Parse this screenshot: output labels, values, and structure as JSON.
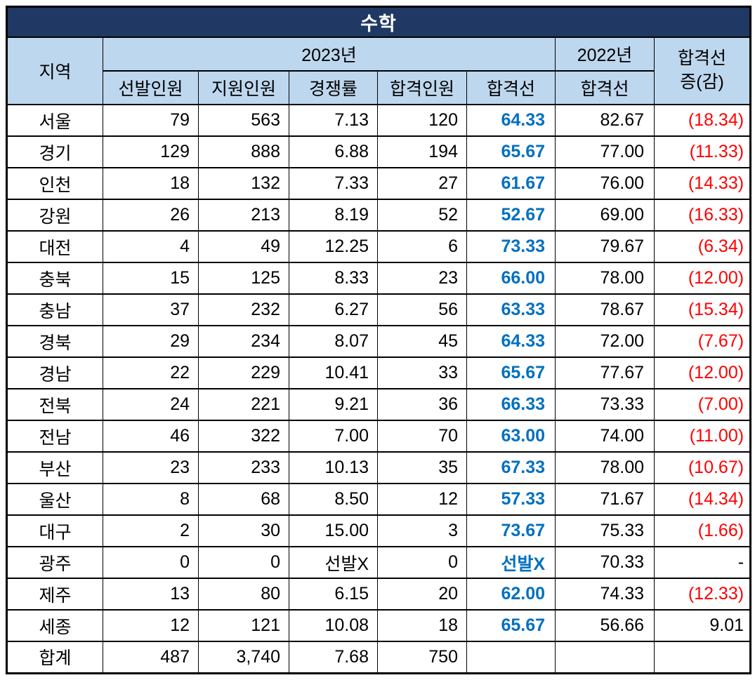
{
  "title": "수학",
  "colors": {
    "title_background": "#203864",
    "title_text": "#FFFFFF",
    "header_background": "#BDD7EE",
    "cutoff_2023_text": "#0070C0",
    "decrease_text": "#FF0000",
    "body_text": "#000000",
    "border": "#000000"
  },
  "header": {
    "region": "지역",
    "group_2023": "2023년",
    "group_2022": "2022년",
    "sub_2023": [
      "선발인원",
      "지원인원",
      "경쟁률",
      "합격인원",
      "합격선"
    ],
    "sub_2022": "합격선",
    "diff_line1": "합격선",
    "diff_line2": "증(감)"
  },
  "rows": [
    {
      "region": "서울",
      "selected_2023": "79",
      "applied_2023": "563",
      "ratio_2023": "7.13",
      "passed_2023": "120",
      "cutoff_2023": "64.33",
      "cutoff_2022": "82.67",
      "diff": "(18.34)",
      "diff_negative": true
    },
    {
      "region": "경기",
      "selected_2023": "129",
      "applied_2023": "888",
      "ratio_2023": "6.88",
      "passed_2023": "194",
      "cutoff_2023": "65.67",
      "cutoff_2022": "77.00",
      "diff": "(11.33)",
      "diff_negative": true
    },
    {
      "region": "인천",
      "selected_2023": "18",
      "applied_2023": "132",
      "ratio_2023": "7.33",
      "passed_2023": "27",
      "cutoff_2023": "61.67",
      "cutoff_2022": "76.00",
      "diff": "(14.33)",
      "diff_negative": true
    },
    {
      "region": "강원",
      "selected_2023": "26",
      "applied_2023": "213",
      "ratio_2023": "8.19",
      "passed_2023": "52",
      "cutoff_2023": "52.67",
      "cutoff_2022": "69.00",
      "diff": "(16.33)",
      "diff_negative": true
    },
    {
      "region": "대전",
      "selected_2023": "4",
      "applied_2023": "49",
      "ratio_2023": "12.25",
      "passed_2023": "6",
      "cutoff_2023": "73.33",
      "cutoff_2022": "79.67",
      "diff": "(6.34)",
      "diff_negative": true
    },
    {
      "region": "충북",
      "selected_2023": "15",
      "applied_2023": "125",
      "ratio_2023": "8.33",
      "passed_2023": "23",
      "cutoff_2023": "66.00",
      "cutoff_2022": "78.00",
      "diff": "(12.00)",
      "diff_negative": true
    },
    {
      "region": "충남",
      "selected_2023": "37",
      "applied_2023": "232",
      "ratio_2023": "6.27",
      "passed_2023": "56",
      "cutoff_2023": "63.33",
      "cutoff_2022": "78.67",
      "diff": "(15.34)",
      "diff_negative": true
    },
    {
      "region": "경북",
      "selected_2023": "29",
      "applied_2023": "234",
      "ratio_2023": "8.07",
      "passed_2023": "45",
      "cutoff_2023": "64.33",
      "cutoff_2022": "72.00",
      "diff": "(7.67)",
      "diff_negative": true
    },
    {
      "region": "경남",
      "selected_2023": "22",
      "applied_2023": "229",
      "ratio_2023": "10.41",
      "passed_2023": "33",
      "cutoff_2023": "65.67",
      "cutoff_2022": "77.67",
      "diff": "(12.00)",
      "diff_negative": true
    },
    {
      "region": "전북",
      "selected_2023": "24",
      "applied_2023": "221",
      "ratio_2023": "9.21",
      "passed_2023": "36",
      "cutoff_2023": "66.33",
      "cutoff_2022": "73.33",
      "diff": "(7.00)",
      "diff_negative": true
    },
    {
      "region": "전남",
      "selected_2023": "46",
      "applied_2023": "322",
      "ratio_2023": "7.00",
      "passed_2023": "70",
      "cutoff_2023": "63.00",
      "cutoff_2022": "74.00",
      "diff": "(11.00)",
      "diff_negative": true
    },
    {
      "region": "부산",
      "selected_2023": "23",
      "applied_2023": "233",
      "ratio_2023": "10.13",
      "passed_2023": "35",
      "cutoff_2023": "67.33",
      "cutoff_2022": "78.00",
      "diff": "(10.67)",
      "diff_negative": true
    },
    {
      "region": "울산",
      "selected_2023": "8",
      "applied_2023": "68",
      "ratio_2023": "8.50",
      "passed_2023": "12",
      "cutoff_2023": "57.33",
      "cutoff_2022": "71.67",
      "diff": "(14.34)",
      "diff_negative": true
    },
    {
      "region": "대구",
      "selected_2023": "2",
      "applied_2023": "30",
      "ratio_2023": "15.00",
      "passed_2023": "3",
      "cutoff_2023": "73.67",
      "cutoff_2022": "75.33",
      "diff": "(1.66)",
      "diff_negative": true
    },
    {
      "region": "광주",
      "selected_2023": "0",
      "applied_2023": "0",
      "ratio_2023": "선발X",
      "passed_2023": "0",
      "cutoff_2023": "선발X",
      "cutoff_2022": "70.33",
      "diff": "-",
      "diff_negative": false
    },
    {
      "region": "제주",
      "selected_2023": "13",
      "applied_2023": "80",
      "ratio_2023": "6.15",
      "passed_2023": "20",
      "cutoff_2023": "62.00",
      "cutoff_2022": "74.33",
      "diff": "(12.33)",
      "diff_negative": true
    },
    {
      "region": "세종",
      "selected_2023": "12",
      "applied_2023": "121",
      "ratio_2023": "10.08",
      "passed_2023": "18",
      "cutoff_2023": "65.67",
      "cutoff_2022": "56.66",
      "diff": "9.01",
      "diff_negative": false
    }
  ],
  "total": {
    "region": "합계",
    "selected_2023": "487",
    "applied_2023": "3,740",
    "ratio_2023": "7.68",
    "passed_2023": "750",
    "cutoff_2023": "",
    "cutoff_2022": "",
    "diff": ""
  }
}
